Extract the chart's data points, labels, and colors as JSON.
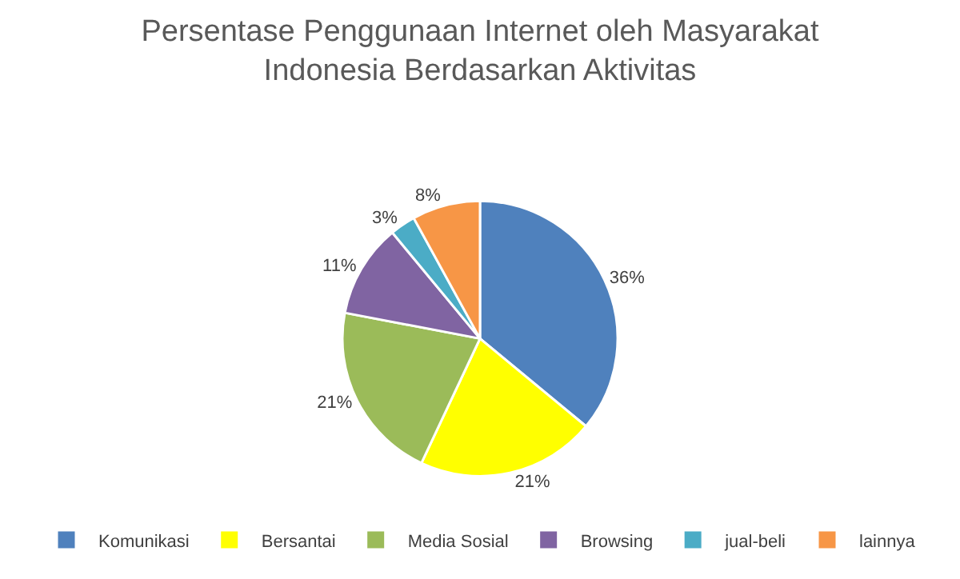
{
  "chart_data": {
    "type": "pie",
    "title": "Persentase Penggunaan Internet oleh Masyarakat Indonesia Berdasarkan Aktivitas",
    "categories": [
      "Komunikasi",
      "Bersantai",
      "Media Sosial",
      "Browsing",
      "jual-beli",
      "lainnya"
    ],
    "values": [
      36,
      21,
      21,
      11,
      3,
      8
    ],
    "value_labels": [
      "36%",
      "21%",
      "21%",
      "11%",
      "3%",
      "8%"
    ],
    "colors": [
      "#4f81bd",
      "#ffff00",
      "#9bbb59",
      "#8064a2",
      "#4bacc6",
      "#f79646"
    ],
    "legend": "bottom"
  }
}
